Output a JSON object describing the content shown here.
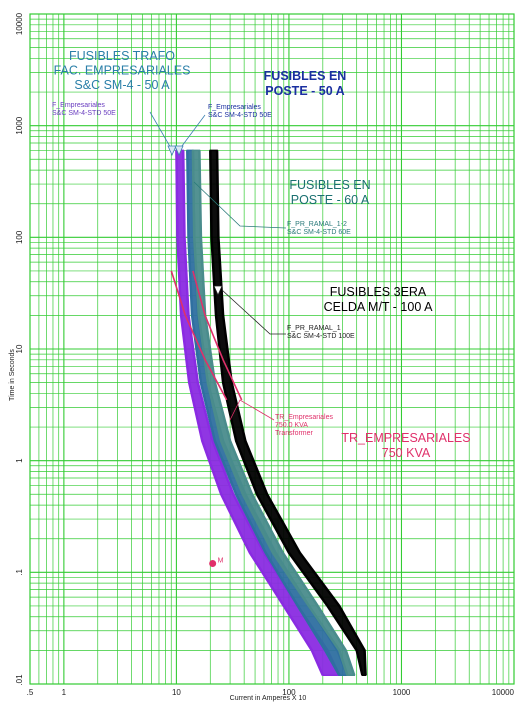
{
  "colors": {
    "grid": "#33cc33",
    "fuse_trafo": "#8a2be2",
    "fuse_poste_50": "#2e6fa0",
    "fuse_poste_60": "#4a8c8c",
    "fuse_celda": "#000000",
    "transformer": "#e0306a",
    "label_trafo": "#2a7fa8",
    "label_poste_50": "#1a2fa0",
    "label_poste_60": "#1a7070",
    "label_celda": "#000000",
    "label_transformer": "#e0306a"
  },
  "chart_data": {
    "type": "line",
    "x_scale": "log",
    "y_scale": "log",
    "xlabel": "Current in Amperes X 10",
    "ylabel": "Time in Seconds",
    "xlim": [
      0.5,
      10000
    ],
    "ylim": [
      0.01,
      10000
    ],
    "x_ticks": [
      ".5",
      "1",
      "10",
      "100",
      "1000",
      "10000"
    ],
    "y_ticks": [
      "10000",
      "1000",
      "100",
      "10",
      "1",
      ".1",
      ".01"
    ],
    "grid": true,
    "series": [
      {
        "key": "fuse_trafo",
        "name": "F_Empresariales S&C SM-4-STD 50E",
        "min_curve": [
          [
            10,
            600
          ],
          [
            10.2,
            100
          ],
          [
            11,
            20
          ],
          [
            13,
            5
          ],
          [
            17,
            1.5
          ],
          [
            25,
            0.5
          ],
          [
            45,
            0.15
          ],
          [
            90,
            0.05
          ],
          [
            160,
            0.02
          ],
          [
            200,
            0.012
          ]
        ],
        "max_curve": [
          [
            11.5,
            600
          ],
          [
            11.8,
            100
          ],
          [
            12.8,
            20
          ],
          [
            15.5,
            5
          ],
          [
            21,
            1.5
          ],
          [
            32,
            0.5
          ],
          [
            60,
            0.15
          ],
          [
            120,
            0.05
          ],
          [
            220,
            0.02
          ],
          [
            280,
            0.012
          ]
        ]
      },
      {
        "key": "fuse_poste_50",
        "name": "F_Empresariales S&C SM-4-STD 50E",
        "min_curve": [
          [
            12.5,
            600
          ],
          [
            12.8,
            100
          ],
          [
            13.8,
            20
          ],
          [
            16.5,
            5
          ],
          [
            22,
            1.5
          ],
          [
            34,
            0.5
          ],
          [
            62,
            0.15
          ],
          [
            120,
            0.05
          ],
          [
            210,
            0.02
          ],
          [
            280,
            0.012
          ]
        ],
        "max_curve": [
          [
            14,
            600
          ],
          [
            14.4,
            100
          ],
          [
            15.6,
            20
          ],
          [
            19,
            5
          ],
          [
            26,
            1.5
          ],
          [
            41,
            0.5
          ],
          [
            76,
            0.15
          ],
          [
            150,
            0.05
          ],
          [
            270,
            0.02
          ],
          [
            330,
            0.012
          ]
        ]
      },
      {
        "key": "fuse_poste_60",
        "name": "F_PR_RAMAL_1-2 S&C SM-4-STD 60E",
        "min_curve": [
          [
            14,
            600
          ],
          [
            14.4,
            100
          ],
          [
            15.8,
            20
          ],
          [
            19,
            5
          ],
          [
            25,
            1.5
          ],
          [
            39,
            0.5
          ],
          [
            72,
            0.15
          ],
          [
            150,
            0.05
          ],
          [
            280,
            0.02
          ],
          [
            330,
            0.012
          ]
        ],
        "max_curve": [
          [
            16,
            600
          ],
          [
            16.5,
            100
          ],
          [
            18,
            20
          ],
          [
            22,
            5
          ],
          [
            30,
            1.5
          ],
          [
            47,
            0.5
          ],
          [
            88,
            0.15
          ],
          [
            180,
            0.05
          ],
          [
            320,
            0.02
          ],
          [
            380,
            0.012
          ]
        ]
      },
      {
        "key": "fuse_celda",
        "name": "F_PR_RAMAL_1 S&C SM-4-STD 100E",
        "min_curve": [
          [
            20,
            600
          ],
          [
            20.5,
            100
          ],
          [
            22.5,
            20
          ],
          [
            26,
            5
          ],
          [
            34,
            1.5
          ],
          [
            52,
            0.5
          ],
          [
            100,
            0.15
          ],
          [
            220,
            0.05
          ],
          [
            400,
            0.02
          ],
          [
            450,
            0.012
          ]
        ],
        "max_curve": [
          [
            23,
            600
          ],
          [
            23.6,
            100
          ],
          [
            26,
            20
          ],
          [
            31,
            5
          ],
          [
            41,
            1.5
          ],
          [
            64,
            0.5
          ],
          [
            125,
            0.15
          ],
          [
            280,
            0.05
          ],
          [
            470,
            0.02
          ],
          [
            480,
            0.012
          ]
        ]
      },
      {
        "key": "transformer",
        "name": "TR_Empresariales 750.0 KVA Transformer",
        "damage_curves": [
          [
            [
              9,
              50
            ],
            [
              12,
              20
            ],
            [
              18,
              8
            ],
            [
              28,
              3.5
            ]
          ],
          [
            [
              14,
              50
            ],
            [
              18,
              20
            ],
            [
              26,
              8
            ],
            [
              38,
              3.5
            ]
          ]
        ],
        "inrush_point": [
          21,
          0.12
        ]
      }
    ],
    "annotations": {
      "title_trafo": [
        "FUSIBLES TRAFO",
        "FAC. EMPRESARIALES",
        "S&C SM-4 - 50 A"
      ],
      "title_poste_50": [
        "FUSIBLES EN",
        "POSTE - 50 A"
      ],
      "title_poste_60": [
        "FUSIBLES EN",
        "POSTE - 60 A"
      ],
      "title_celda": [
        "FUSIBLES 3ERA",
        "CELDA M/T - 100 A"
      ],
      "title_transformer": [
        "TR_EMPRESARIALES",
        "750 KVA"
      ],
      "small_trafo": [
        "F_Empresariales",
        "S&C SM-4-STD 50E"
      ],
      "small_poste_50": [
        "F_Empresariales",
        "S&C SM-4-STD 50E"
      ],
      "small_poste_60": [
        "F_PR_RAMAL_1-2",
        "S&C SM-4-STD 60E"
      ],
      "small_celda": [
        "F_PR_RAMAL_1",
        "S&C SM-4-STD 100E"
      ],
      "small_transformer": [
        "TR_Empresariales",
        "750.0 KVA",
        "Transformer"
      ],
      "point_marker": "M"
    }
  }
}
